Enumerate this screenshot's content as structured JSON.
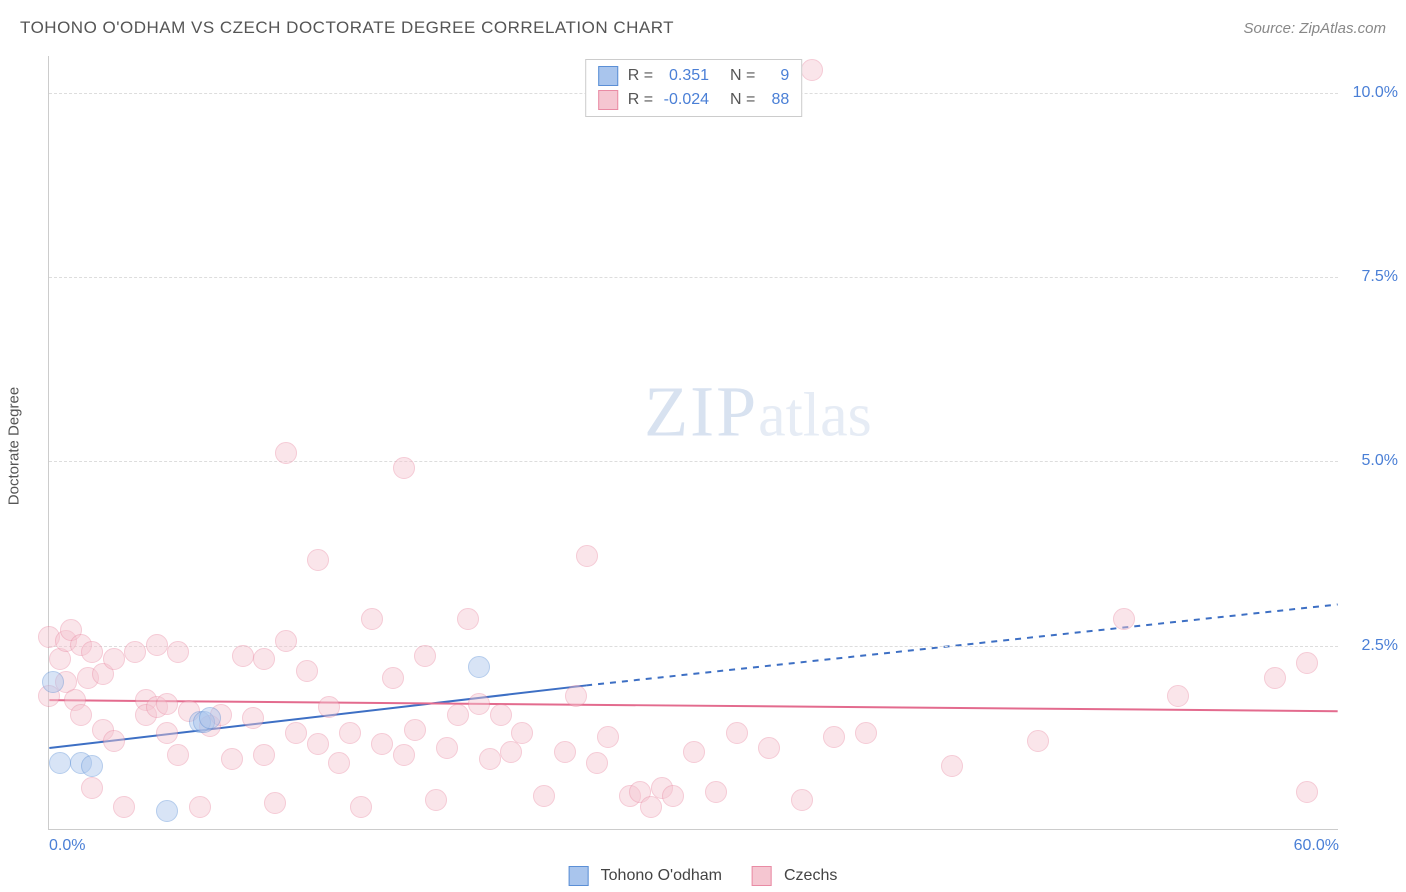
{
  "title": "TOHONO O'ODHAM VS CZECH DOCTORATE DEGREE CORRELATION CHART",
  "source": "Source: ZipAtlas.com",
  "y_axis_label": "Doctorate Degree",
  "watermark_zip": "ZIP",
  "watermark_atlas": "atlas",
  "chart": {
    "type": "scatter",
    "xlim": [
      0,
      60
    ],
    "ylim": [
      0,
      10.5
    ],
    "x_ticks": [
      {
        "value": 0,
        "label": "0.0%"
      },
      {
        "value": 60,
        "label": "60.0%"
      }
    ],
    "y_gridlines": [
      {
        "value": 2.5,
        "label": "2.5%"
      },
      {
        "value": 5.0,
        "label": "5.0%"
      },
      {
        "value": 7.5,
        "label": "7.5%"
      },
      {
        "value": 10.0,
        "label": "10.0%"
      }
    ],
    "background_color": "#ffffff",
    "grid_color": "#dddddd",
    "axis_color": "#cccccc",
    "tick_label_color": "#4a7fd6",
    "marker_radius": 11,
    "marker_opacity": 0.45,
    "series": [
      {
        "name": "Tohono O'odham",
        "fill": "#a9c5ed",
        "stroke": "#5b8fd6",
        "trend": {
          "x1": 0,
          "y1": 1.1,
          "x2_solid": 25,
          "y2_solid": 1.95,
          "x2": 60,
          "y2": 3.05,
          "color": "#3d6fc4",
          "width": 2,
          "dash_after_solid": "6,6"
        },
        "stats": {
          "R": "0.351",
          "N": "9"
        },
        "points": [
          {
            "x": 0.2,
            "y": 2.0
          },
          {
            "x": 0.5,
            "y": 0.9
          },
          {
            "x": 1.5,
            "y": 0.9
          },
          {
            "x": 2.0,
            "y": 0.85
          },
          {
            "x": 5.5,
            "y": 0.25
          },
          {
            "x": 7.0,
            "y": 1.45
          },
          {
            "x": 7.2,
            "y": 1.45
          },
          {
            "x": 7.5,
            "y": 1.5
          },
          {
            "x": 20.0,
            "y": 2.2
          }
        ]
      },
      {
        "name": "Czechs",
        "fill": "#f5c6d1",
        "stroke": "#e98ba4",
        "trend": {
          "x1": 0,
          "y1": 1.75,
          "x2_solid": 60,
          "y2_solid": 1.6,
          "x2": 60,
          "y2": 1.6,
          "color": "#e36b8e",
          "width": 2,
          "dash_after_solid": ""
        },
        "stats": {
          "R": "-0.024",
          "N": "88"
        },
        "points": [
          {
            "x": 0.0,
            "y": 2.6
          },
          {
            "x": 0.0,
            "y": 1.8
          },
          {
            "x": 0.5,
            "y": 2.3
          },
          {
            "x": 0.8,
            "y": 2.55
          },
          {
            "x": 0.8,
            "y": 2.0
          },
          {
            "x": 1.0,
            "y": 2.7
          },
          {
            "x": 1.2,
            "y": 1.75
          },
          {
            "x": 1.5,
            "y": 2.5
          },
          {
            "x": 1.5,
            "y": 1.55
          },
          {
            "x": 1.8,
            "y": 2.05
          },
          {
            "x": 2.0,
            "y": 2.4
          },
          {
            "x": 2.0,
            "y": 0.55
          },
          {
            "x": 2.5,
            "y": 2.1
          },
          {
            "x": 2.5,
            "y": 1.35
          },
          {
            "x": 3.0,
            "y": 2.3
          },
          {
            "x": 3.0,
            "y": 1.2
          },
          {
            "x": 3.5,
            "y": 0.3
          },
          {
            "x": 4.0,
            "y": 2.4
          },
          {
            "x": 4.5,
            "y": 1.75
          },
          {
            "x": 4.5,
            "y": 1.55
          },
          {
            "x": 5.0,
            "y": 2.5
          },
          {
            "x": 5.0,
            "y": 1.65
          },
          {
            "x": 5.5,
            "y": 1.7
          },
          {
            "x": 5.5,
            "y": 1.3
          },
          {
            "x": 6.0,
            "y": 2.4
          },
          {
            "x": 6.0,
            "y": 1.0
          },
          {
            "x": 6.5,
            "y": 1.6
          },
          {
            "x": 7.0,
            "y": 0.3
          },
          {
            "x": 7.5,
            "y": 1.4
          },
          {
            "x": 8.0,
            "y": 1.55
          },
          {
            "x": 8.5,
            "y": 0.95
          },
          {
            "x": 9.0,
            "y": 2.35
          },
          {
            "x": 9.5,
            "y": 1.5
          },
          {
            "x": 10.0,
            "y": 2.3
          },
          {
            "x": 10.0,
            "y": 1.0
          },
          {
            "x": 10.5,
            "y": 0.35
          },
          {
            "x": 11.0,
            "y": 2.55
          },
          {
            "x": 11.0,
            "y": 5.1
          },
          {
            "x": 11.5,
            "y": 1.3
          },
          {
            "x": 12.0,
            "y": 2.15
          },
          {
            "x": 12.5,
            "y": 3.65
          },
          {
            "x": 12.5,
            "y": 1.15
          },
          {
            "x": 13.0,
            "y": 1.65
          },
          {
            "x": 13.5,
            "y": 0.9
          },
          {
            "x": 14.0,
            "y": 1.3
          },
          {
            "x": 14.5,
            "y": 0.3
          },
          {
            "x": 15.0,
            "y": 2.85
          },
          {
            "x": 15.5,
            "y": 1.15
          },
          {
            "x": 16.0,
            "y": 2.05
          },
          {
            "x": 16.5,
            "y": 4.9
          },
          {
            "x": 16.5,
            "y": 1.0
          },
          {
            "x": 17.0,
            "y": 1.35
          },
          {
            "x": 17.5,
            "y": 2.35
          },
          {
            "x": 18.0,
            "y": 0.4
          },
          {
            "x": 18.5,
            "y": 1.1
          },
          {
            "x": 19.0,
            "y": 1.55
          },
          {
            "x": 19.5,
            "y": 2.85
          },
          {
            "x": 20.0,
            "y": 1.7
          },
          {
            "x": 20.5,
            "y": 0.95
          },
          {
            "x": 21.0,
            "y": 1.55
          },
          {
            "x": 21.5,
            "y": 1.05
          },
          {
            "x": 22.0,
            "y": 1.3
          },
          {
            "x": 23.0,
            "y": 0.45
          },
          {
            "x": 24.0,
            "y": 1.05
          },
          {
            "x": 24.5,
            "y": 1.8
          },
          {
            "x": 25.0,
            "y": 3.7
          },
          {
            "x": 25.5,
            "y": 0.9
          },
          {
            "x": 26.0,
            "y": 1.25
          },
          {
            "x": 27.0,
            "y": 0.45
          },
          {
            "x": 27.5,
            "y": 0.5
          },
          {
            "x": 28.0,
            "y": 0.3
          },
          {
            "x": 28.5,
            "y": 0.55
          },
          {
            "x": 29.0,
            "y": 0.45
          },
          {
            "x": 30.0,
            "y": 1.05
          },
          {
            "x": 31.0,
            "y": 0.5
          },
          {
            "x": 32.0,
            "y": 1.3
          },
          {
            "x": 33.5,
            "y": 1.1
          },
          {
            "x": 35.0,
            "y": 0.4
          },
          {
            "x": 35.5,
            "y": 10.3
          },
          {
            "x": 36.5,
            "y": 1.25
          },
          {
            "x": 38.0,
            "y": 1.3
          },
          {
            "x": 42.0,
            "y": 0.85
          },
          {
            "x": 46.0,
            "y": 1.2
          },
          {
            "x": 50.0,
            "y": 2.85
          },
          {
            "x": 52.5,
            "y": 1.8
          },
          {
            "x": 57.0,
            "y": 2.05
          },
          {
            "x": 58.5,
            "y": 0.5
          },
          {
            "x": 58.5,
            "y": 2.25
          }
        ]
      }
    ]
  },
  "stats_labels": {
    "R": "R =",
    "N": "N ="
  },
  "legend_items": [
    {
      "label": "Tohono O'odham",
      "fill": "#a9c5ed",
      "stroke": "#5b8fd6"
    },
    {
      "label": "Czechs",
      "fill": "#f5c6d1",
      "stroke": "#e98ba4"
    }
  ]
}
